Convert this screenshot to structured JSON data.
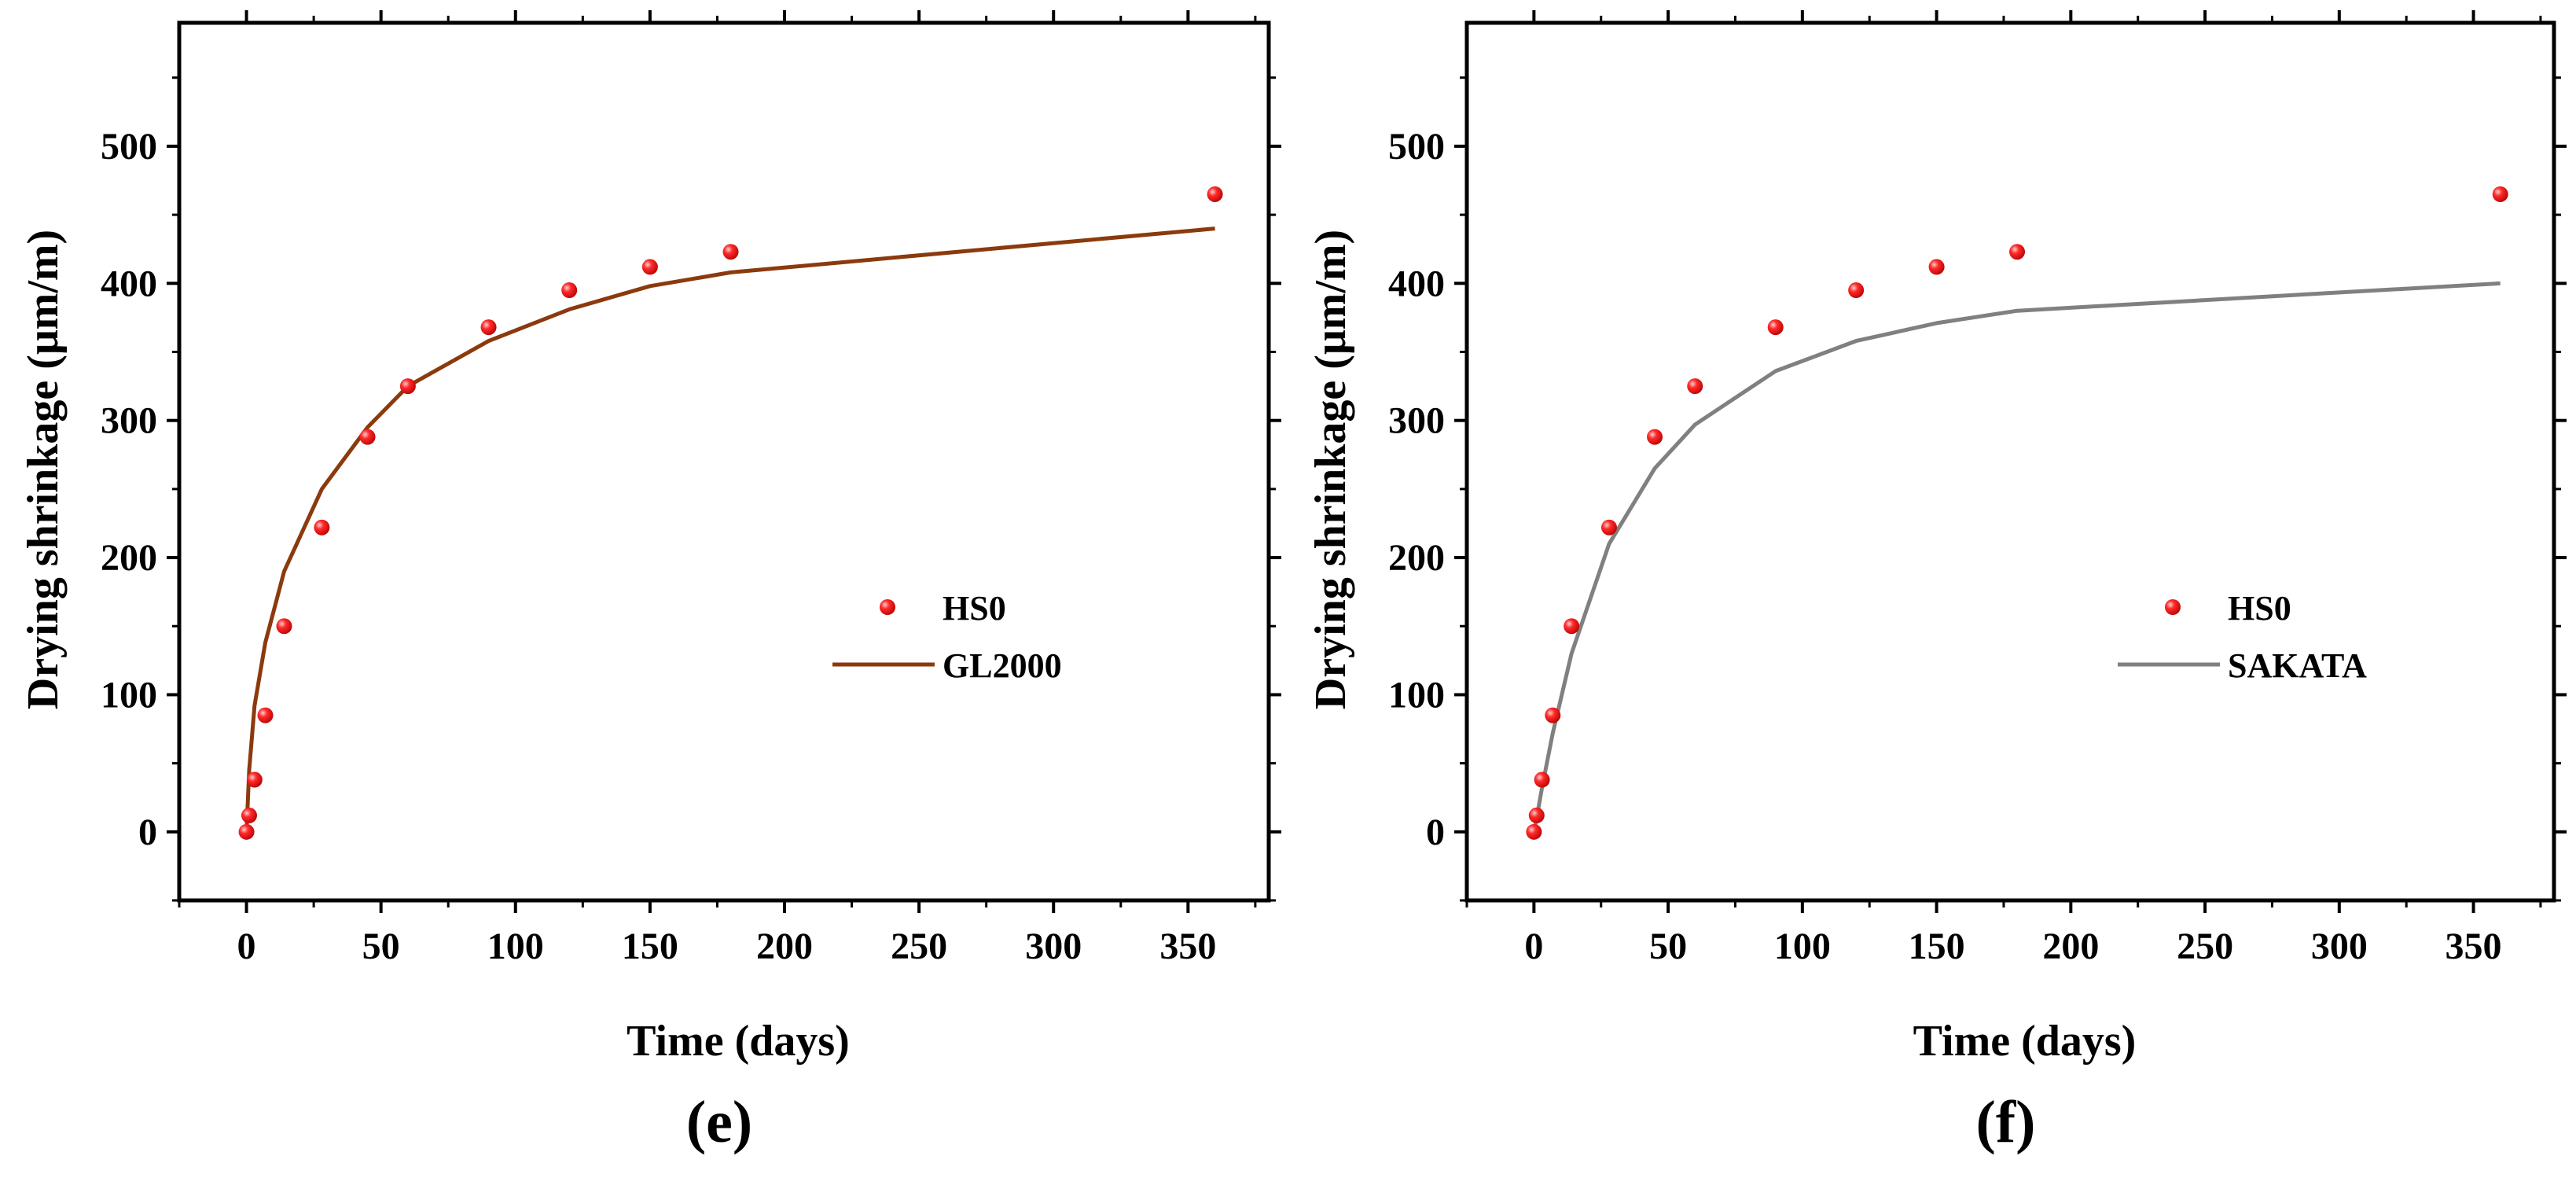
{
  "figure": {
    "panels": [
      "(e)",
      "(f)"
    ]
  },
  "chart_data": [
    {
      "panel_label": "(e)",
      "type": "scatter",
      "xlabel": "Time (days)",
      "ylabel": "Drying shrinkage (μm/m)",
      "xlim": [
        -25,
        380
      ],
      "ylim": [
        -50,
        590
      ],
      "xticks": [
        0,
        50,
        100,
        150,
        200,
        250,
        300,
        350
      ],
      "yticks": [
        0,
        100,
        200,
        300,
        400,
        500
      ],
      "legend_position": "center-right",
      "series": [
        {
          "name": "HS0",
          "kind": "scatter",
          "color": "#e8141b",
          "x": [
            0,
            1,
            3,
            7,
            14,
            28,
            45,
            60,
            90,
            120,
            150,
            180,
            360
          ],
          "y": [
            0,
            12,
            38,
            85,
            150,
            222,
            288,
            325,
            368,
            395,
            412,
            423,
            465
          ]
        },
        {
          "name": "GL2000",
          "kind": "line",
          "color": "#8b3a0e",
          "x": [
            0,
            1,
            3,
            7,
            14,
            28,
            45,
            60,
            90,
            120,
            150,
            180,
            360
          ],
          "y": [
            0,
            45,
            92,
            138,
            190,
            250,
            295,
            325,
            358,
            381,
            398,
            408,
            440
          ]
        }
      ]
    },
    {
      "panel_label": "(f)",
      "type": "scatter",
      "xlabel": "Time (days)",
      "ylabel": "Drying shrinkage (μm/m)",
      "xlim": [
        -25,
        380
      ],
      "ylim": [
        -50,
        590
      ],
      "xticks": [
        0,
        50,
        100,
        150,
        200,
        250,
        300,
        350
      ],
      "yticks": [
        0,
        100,
        200,
        300,
        400,
        500
      ],
      "legend_position": "center-right",
      "series": [
        {
          "name": "HS0",
          "kind": "scatter",
          "color": "#e8141b",
          "x": [
            0,
            1,
            3,
            7,
            14,
            28,
            45,
            60,
            90,
            120,
            150,
            180,
            360
          ],
          "y": [
            0,
            12,
            38,
            85,
            150,
            222,
            288,
            325,
            368,
            395,
            412,
            423,
            465
          ]
        },
        {
          "name": "SAKATA",
          "kind": "line",
          "color": "#808080",
          "x": [
            0,
            1,
            3,
            7,
            14,
            28,
            45,
            60,
            90,
            120,
            150,
            180,
            360
          ],
          "y": [
            0,
            10,
            32,
            72,
            130,
            210,
            265,
            297,
            336,
            358,
            371,
            380,
            400
          ]
        }
      ]
    }
  ]
}
